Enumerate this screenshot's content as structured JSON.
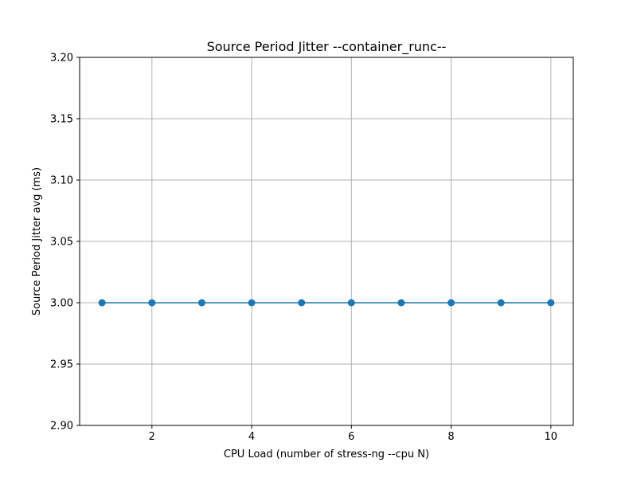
{
  "chart_data": {
    "type": "line",
    "title": "Source Period Jitter --container_runc--",
    "xlabel": "CPU Load (number of stress-ng --cpu N)",
    "ylabel": "Source Period Jitter avg (ms)",
    "xlim": [
      0.55,
      10.45
    ],
    "ylim": [
      2.9,
      3.2
    ],
    "xticks": [
      2,
      4,
      6,
      8,
      10
    ],
    "xtick_labels": [
      "2",
      "4",
      "6",
      "8",
      "10"
    ],
    "yticks": [
      2.9,
      2.95,
      3.0,
      3.05,
      3.1,
      3.15,
      3.2
    ],
    "ytick_labels": [
      "2.90",
      "2.95",
      "3.00",
      "3.05",
      "3.10",
      "3.15",
      "3.20"
    ],
    "grid": true,
    "series": [
      {
        "color": "#1f77b4",
        "marker": "circle",
        "x": [
          1,
          2,
          3,
          4,
          5,
          6,
          7,
          8,
          9,
          10
        ],
        "y": [
          3.0,
          3.0,
          3.0,
          3.0,
          3.0,
          3.0,
          3.0,
          3.0,
          3.0,
          3.0
        ]
      }
    ]
  }
}
